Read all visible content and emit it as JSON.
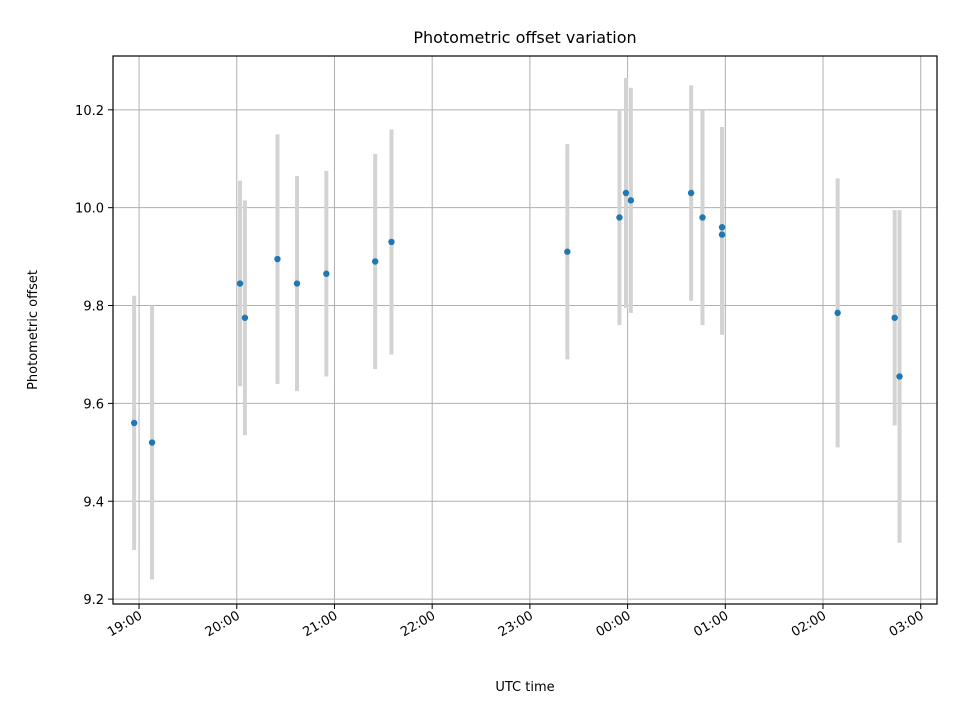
{
  "chart_data": {
    "type": "scatter",
    "title": "Photometric offset variation",
    "xlabel": "UTC time",
    "ylabel": "Photometric offset",
    "xlim": [
      "18:44",
      "03:10"
    ],
    "ylim": [
      9.19,
      10.31
    ],
    "x_ticks": [
      "19:00",
      "20:00",
      "21:00",
      "22:00",
      "23:00",
      "00:00",
      "01:00",
      "02:00",
      "03:00"
    ],
    "y_ticks": [
      "9.2",
      "9.4",
      "9.6",
      "9.8",
      "10.0",
      "10.2"
    ],
    "grid": true,
    "colors": {
      "marker": "#1f77b4",
      "errorbar": "#d3d3d3",
      "grid": "#b0b0b0"
    },
    "series": [
      {
        "points": [
          {
            "x": "18:57",
            "y": 9.56,
            "err": 0.26
          },
          {
            "x": "19:08",
            "y": 9.52,
            "err": 0.28
          },
          {
            "x": "20:02",
            "y": 9.845,
            "err": 0.21
          },
          {
            "x": "20:05",
            "y": 9.775,
            "err": 0.24
          },
          {
            "x": "20:25",
            "y": 9.895,
            "err": 0.255
          },
          {
            "x": "20:37",
            "y": 9.845,
            "err": 0.22
          },
          {
            "x": "20:55",
            "y": 9.865,
            "err": 0.21
          },
          {
            "x": "21:25",
            "y": 9.89,
            "err": 0.22
          },
          {
            "x": "21:35",
            "y": 9.93,
            "err": 0.23
          },
          {
            "x": "23:23",
            "y": 9.91,
            "err": 0.22
          },
          {
            "x": "23:55",
            "y": 9.98,
            "err": 0.22
          },
          {
            "x": "23:59",
            "y": 10.03,
            "err": 0.235
          },
          {
            "x": "00:02",
            "y": 10.015,
            "err": 0.23
          },
          {
            "x": "00:39",
            "y": 10.03,
            "err": 0.22
          },
          {
            "x": "00:46",
            "y": 9.98,
            "err": 0.22
          },
          {
            "x": "00:58",
            "y": 9.945,
            "err": 0.205
          },
          {
            "x": "00:58",
            "y": 9.96,
            "err": 0.205
          },
          {
            "x": "02:09",
            "y": 9.785,
            "err": 0.275
          },
          {
            "x": "02:44",
            "y": 9.775,
            "err": 0.22
          },
          {
            "x": "02:47",
            "y": 9.655,
            "err": 0.34
          }
        ]
      }
    ]
  }
}
